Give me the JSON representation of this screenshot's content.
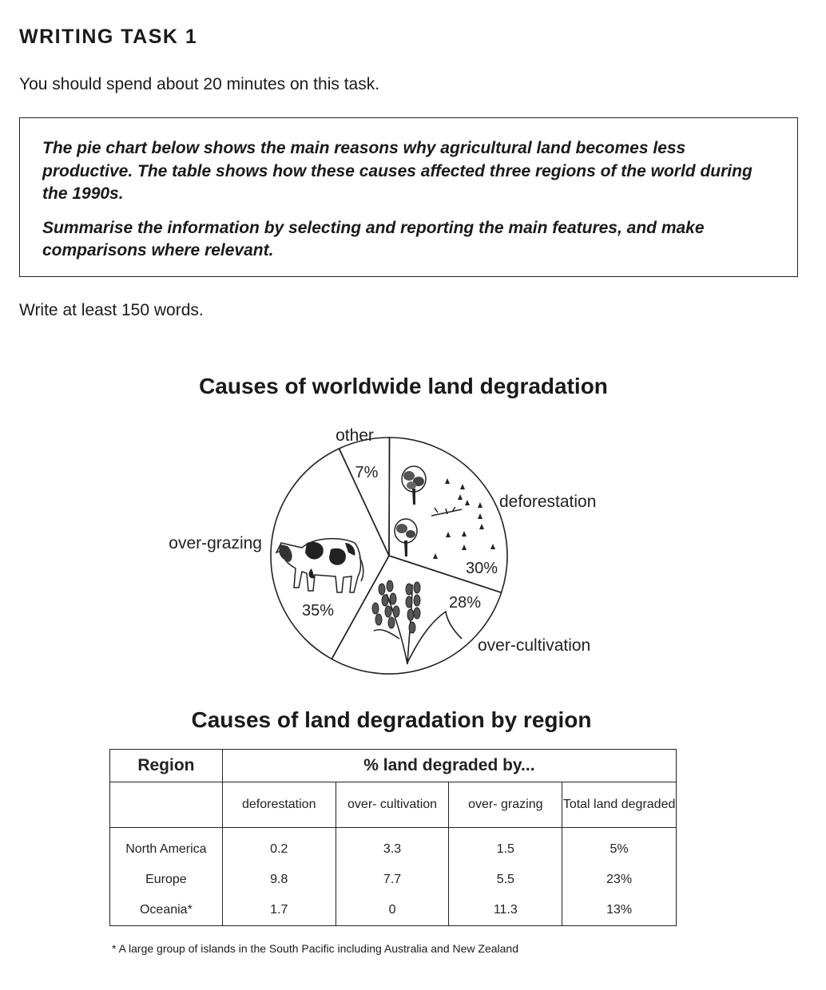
{
  "task": {
    "heading": "WRITING TASK 1",
    "instruction": "You should spend about 20 minutes on this task.",
    "prompt_1": "The pie chart below shows the main reasons why agricultural land becomes less productive. The table shows how these causes affected three regions of the world during the 1990s.",
    "prompt_2": "Summarise the information by selecting and reporting the main features, and make comparisons where relevant.",
    "word_count": "Write at least 150 words."
  },
  "chart_data": [
    {
      "type": "pie",
      "title": "Causes of worldwide land degradation",
      "slices": [
        {
          "label": "other",
          "value": 7,
          "value_label": "7%"
        },
        {
          "label": "deforestation",
          "value": 30,
          "value_label": "30%",
          "icon": "tree-icon"
        },
        {
          "label": "over-cultivation",
          "value": 28,
          "value_label": "28%",
          "icon": "wheat-icon"
        },
        {
          "label": "over-grazing",
          "value": 35,
          "value_label": "35%",
          "icon": "cow-icon"
        }
      ]
    },
    {
      "type": "table",
      "title": "Causes of land degradation by region",
      "header_region": "Region",
      "header_group": "% land degraded by...",
      "columns": [
        "deforestation",
        "over- cultivation",
        "over- grazing",
        "Total land degraded"
      ],
      "rows": [
        {
          "region": "North America",
          "values": [
            "0.2",
            "3.3",
            "1.5",
            "5%"
          ]
        },
        {
          "region": "Europe",
          "values": [
            "9.8",
            "7.7",
            "5.5",
            "23%"
          ]
        },
        {
          "region": "Oceania*",
          "values": [
            "1.7",
            "0",
            "11.3",
            "13%"
          ]
        }
      ],
      "footnote": "* A large group of islands in the South Pacific including Australia and New Zealand"
    }
  ]
}
